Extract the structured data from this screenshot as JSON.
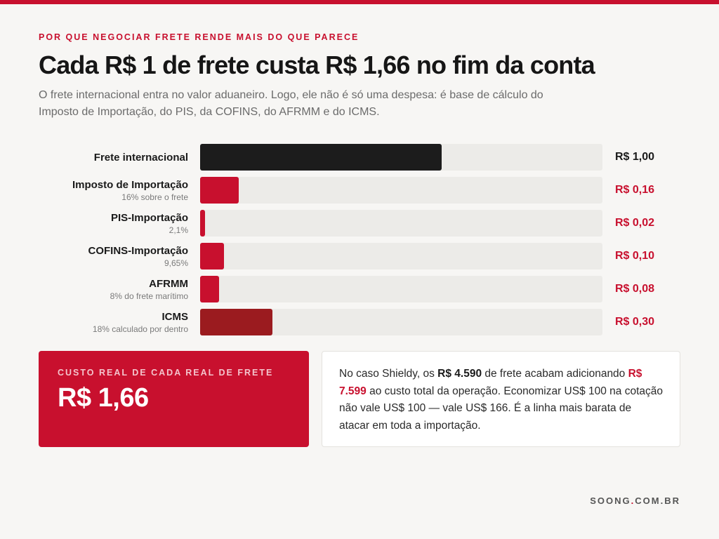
{
  "header": {
    "kicker": "POR QUE NEGOCIAR FRETE RENDE MAIS DO QUE PARECE",
    "title": "Cada R$ 1 de frete custa R$ 1,66 no fim da conta",
    "subtitle": "O frete internacional entra no valor aduaneiro. Logo, ele não é só uma despesa: é base de cálculo do Imposto de Importação, do PIS, da COFINS, do AFRMM e do ICMS."
  },
  "colors": {
    "accent": "#c8102e",
    "freight_bar": "#1c1c1c",
    "tax_bar": "#c8102e",
    "icms_bar": "#9b1b1f",
    "track": "#ecebe8",
    "value_dark": "#1a1a1a"
  },
  "chart_data": {
    "type": "bar",
    "orientation": "horizontal",
    "xlim": [
      0,
      1.667
    ],
    "categories": [
      "Frete internacional",
      "Imposto de Importação",
      "PIS-Importação",
      "COFINS-Importação",
      "AFRMM",
      "ICMS"
    ],
    "sublabels": [
      "",
      "16% sobre o frete",
      "2,1%",
      "9,65%",
      "8% do frete marítimo",
      "18% calculado por dentro"
    ],
    "values": [
      1.0,
      0.16,
      0.02,
      0.1,
      0.08,
      0.3
    ],
    "value_labels": [
      "R$ 1,00",
      "R$ 0,16",
      "R$ 0,02",
      "R$ 0,10",
      "R$ 0,08",
      "R$ 0,30"
    ],
    "bar_colors": [
      "#1c1c1c",
      "#c8102e",
      "#c8102e",
      "#c8102e",
      "#c8102e",
      "#9b1b1f"
    ],
    "label_colors": [
      "#1a1a1a",
      "#c8102e",
      "#c8102e",
      "#c8102e",
      "#c8102e",
      "#c8102e"
    ]
  },
  "summary": {
    "label": "CUSTO REAL DE CADA REAL DE FRETE",
    "value": "R$ 1,66"
  },
  "note": {
    "p1": "No caso Shieldy, os ",
    "amount_freight": "R$ 4.590",
    "p2": " de frete acabam adicionando ",
    "amount_added": "R$ 7.599",
    "p3": " ao custo total da operação. Economizar US$ 100 na cotação não vale US$ 100 — vale US$ 166. É a linha mais barata de atacar em toda a importação."
  },
  "footer": {
    "brand_left": "SOONG",
    "dot": ".",
    "brand_right": "COM.BR"
  }
}
